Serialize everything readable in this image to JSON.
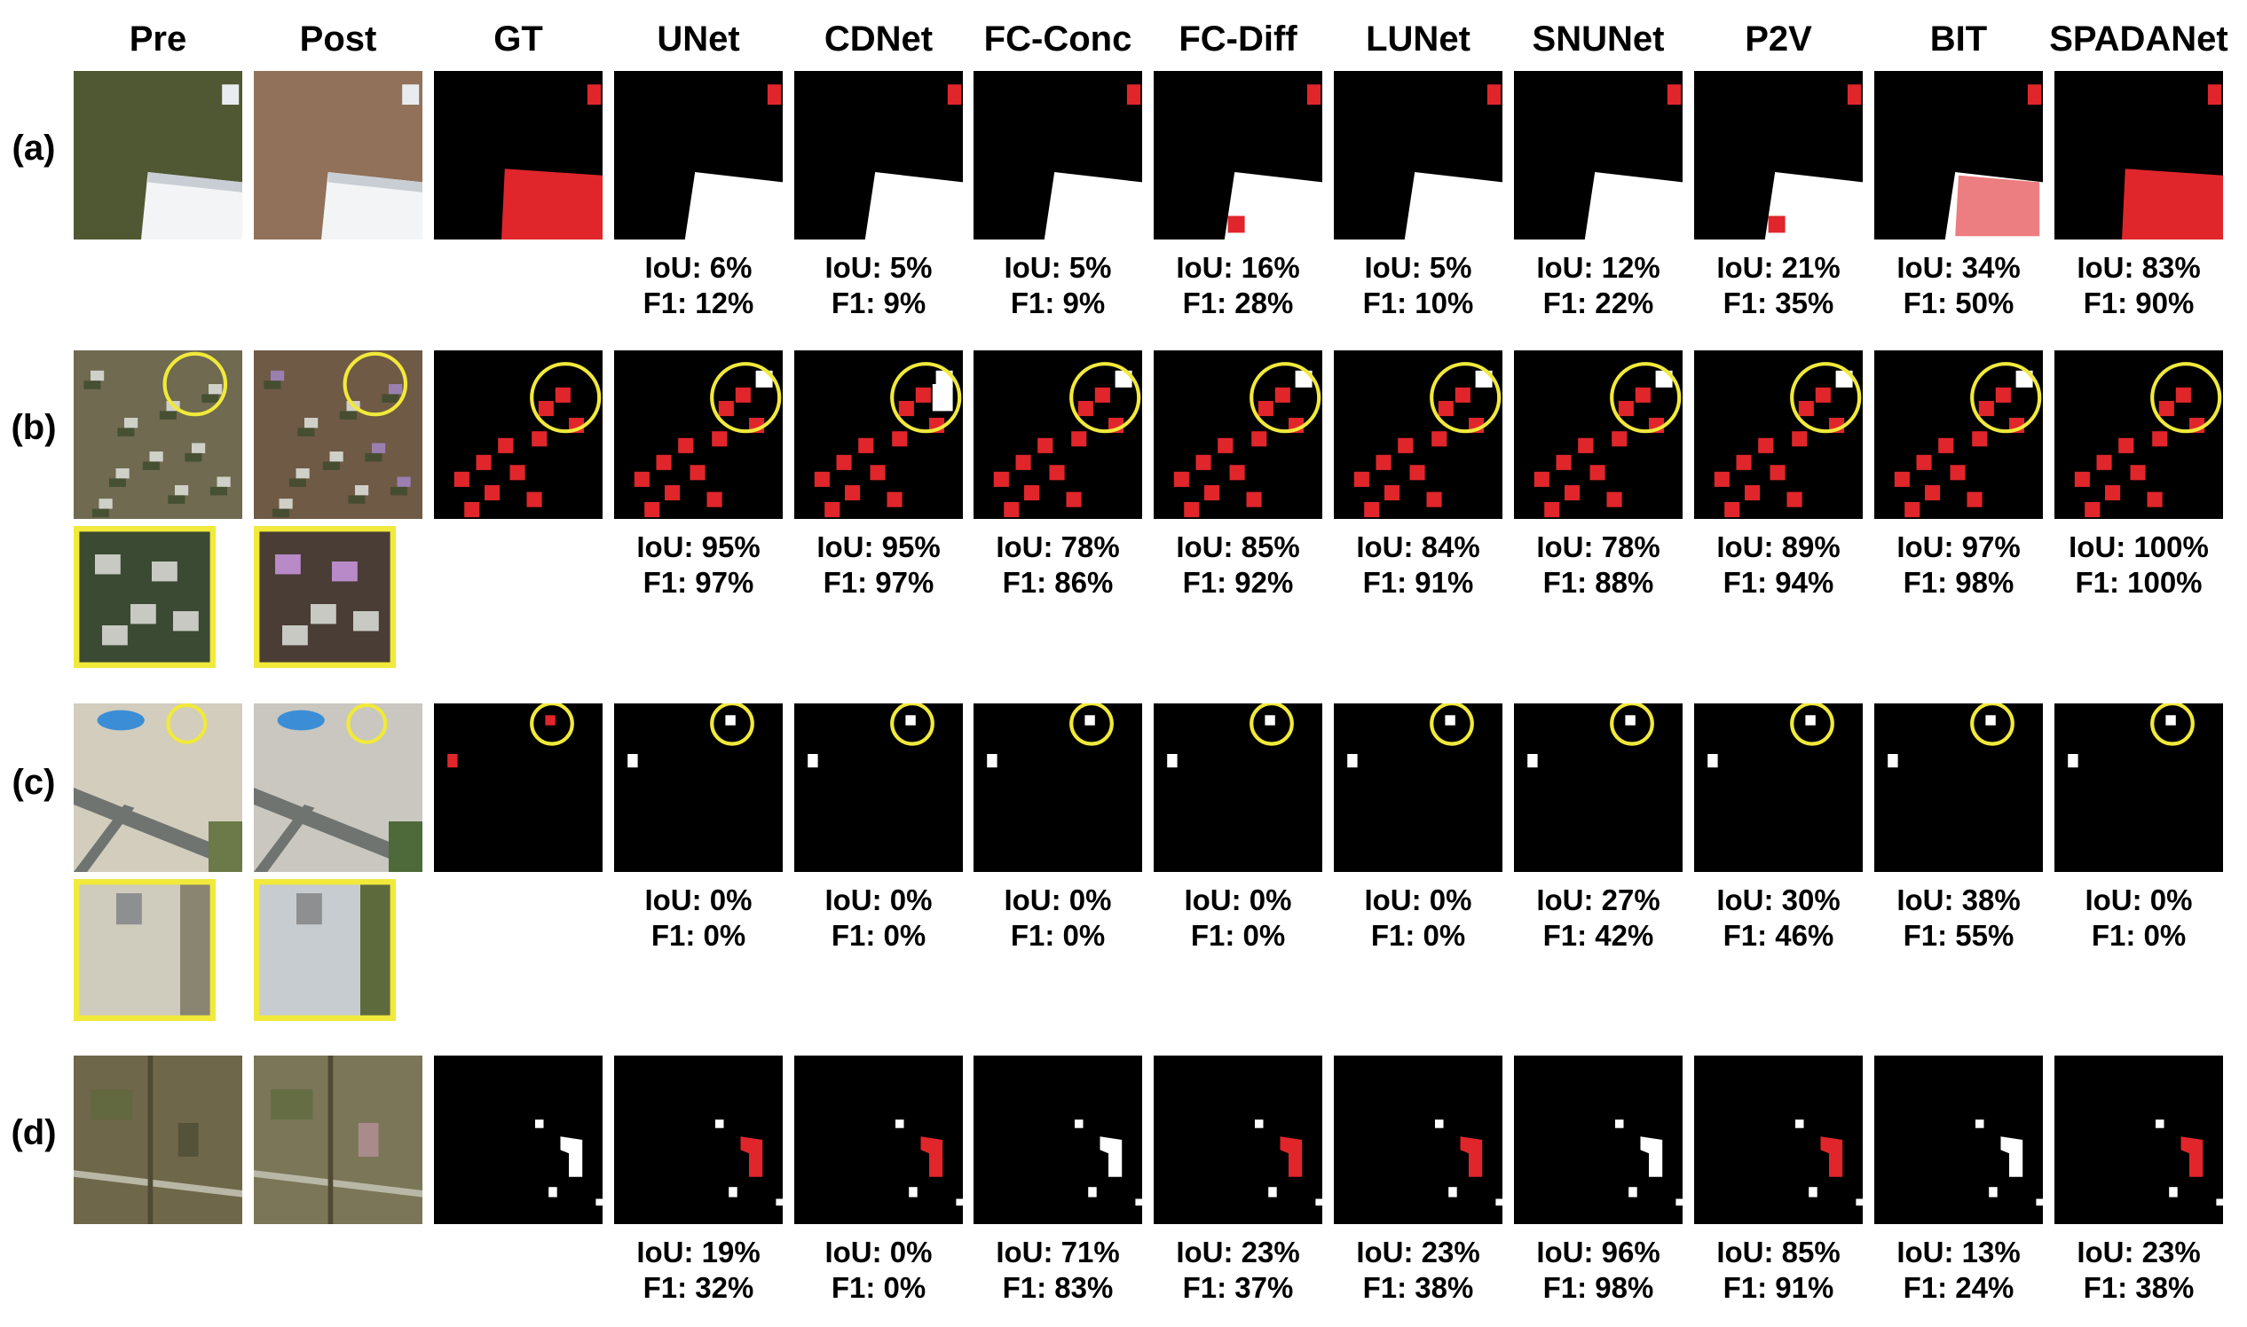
{
  "columns": [
    "Pre",
    "Post",
    "GT",
    "UNet",
    "CDNet",
    "FC-Conc",
    "FC-Diff",
    "LUNet",
    "SNUNet",
    "P2V",
    "BIT",
    "SPADANet"
  ],
  "colors": {
    "red": "#e0262b",
    "white": "#ffffff",
    "black": "#000000",
    "highlight": "#f1e93b"
  },
  "rows": [
    {
      "label": "(a)",
      "metrics": [
        {
          "iou": "IoU: 6%",
          "f1": "F1: 12%"
        },
        {
          "iou": "IoU: 5%",
          "f1": "F1: 9%"
        },
        {
          "iou": "IoU: 5%",
          "f1": "F1: 9%"
        },
        {
          "iou": "IoU: 16%",
          "f1": "F1: 28%"
        },
        {
          "iou": "IoU: 5%",
          "f1": "F1: 10%"
        },
        {
          "iou": "IoU: 12%",
          "f1": "F1: 22%"
        },
        {
          "iou": "IoU: 21%",
          "f1": "F1: 35%"
        },
        {
          "iou": "IoU: 34%",
          "f1": "F1: 50%"
        },
        {
          "iou": "IoU: 83%",
          "f1": "F1: 90%"
        }
      ]
    },
    {
      "label": "(b)",
      "metrics": [
        {
          "iou": "IoU: 95%",
          "f1": "F1: 97%"
        },
        {
          "iou": "IoU: 95%",
          "f1": "F1: 97%"
        },
        {
          "iou": "IoU: 78%",
          "f1": "F1: 86%"
        },
        {
          "iou": "IoU: 85%",
          "f1": "F1: 92%"
        },
        {
          "iou": "IoU: 84%",
          "f1": "F1: 91%"
        },
        {
          "iou": "IoU: 78%",
          "f1": "F1: 88%"
        },
        {
          "iou": "IoU: 89%",
          "f1": "F1: 94%"
        },
        {
          "iou": "IoU: 97%",
          "f1": "F1: 98%"
        },
        {
          "iou": "IoU: 100%",
          "f1": "F1: 100%"
        }
      ]
    },
    {
      "label": "(c)",
      "metrics": [
        {
          "iou": "IoU: 0%",
          "f1": "F1: 0%"
        },
        {
          "iou": "IoU: 0%",
          "f1": "F1: 0%"
        },
        {
          "iou": "IoU: 0%",
          "f1": "F1: 0%"
        },
        {
          "iou": "IoU: 0%",
          "f1": "F1: 0%"
        },
        {
          "iou": "IoU: 0%",
          "f1": "F1: 0%"
        },
        {
          "iou": "IoU: 27%",
          "f1": "F1: 42%"
        },
        {
          "iou": "IoU: 30%",
          "f1": "F1: 46%"
        },
        {
          "iou": "IoU: 38%",
          "f1": "F1: 55%"
        },
        {
          "iou": "IoU: 0%",
          "f1": "F1: 0%"
        }
      ]
    },
    {
      "label": "(d)",
      "metrics": [
        {
          "iou": "IoU: 19%",
          "f1": "F1: 32%"
        },
        {
          "iou": "IoU: 0%",
          "f1": "F1: 0%"
        },
        {
          "iou": "IoU: 71%",
          "f1": "F1: 83%"
        },
        {
          "iou": "IoU: 23%",
          "f1": "F1: 37%"
        },
        {
          "iou": "IoU: 23%",
          "f1": "F1: 38%"
        },
        {
          "iou": "IoU: 96%",
          "f1": "F1: 98%"
        },
        {
          "iou": "IoU: 85%",
          "f1": "F1: 91%"
        },
        {
          "iou": "IoU: 13%",
          "f1": "F1: 24%"
        },
        {
          "iou": "IoU: 23%",
          "f1": "F1: 38%"
        }
      ]
    }
  ]
}
